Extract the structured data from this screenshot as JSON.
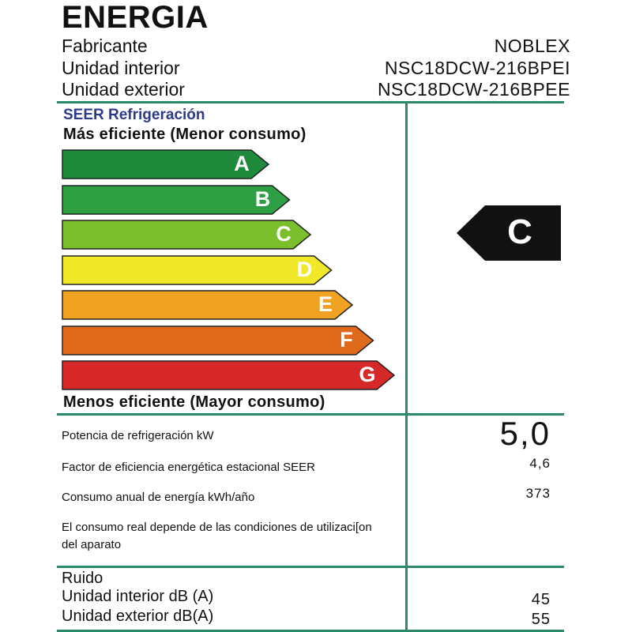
{
  "title": "ENERGIA",
  "header": [
    {
      "label": "Fabricante",
      "value": "NOBLEX"
    },
    {
      "label": "Unidad interior",
      "value": "NSC18DCW-216BPEI"
    },
    {
      "label": "Unidad exterior",
      "value": "NSC18DCW-216BPEE"
    }
  ],
  "section_title": "SEER Refrigeración",
  "scale_top": "Más eficiente (Menor consumo)",
  "scale_bottom": "Menos eficiente (Mayor consumo)",
  "bands": [
    {
      "letter": "A",
      "color": "#1f8a3c"
    },
    {
      "letter": "B",
      "color": "#2ea043"
    },
    {
      "letter": "C",
      "color": "#7cbf2c"
    },
    {
      "letter": "D",
      "color": "#f2e82a"
    },
    {
      "letter": "E",
      "color": "#f0a323"
    },
    {
      "letter": "F",
      "color": "#e06a1c"
    },
    {
      "letter": "G",
      "color": "#d62828"
    }
  ],
  "rating": "C",
  "specs": {
    "power_label": "Potencia de refrigeración kW",
    "power_value": "5,0",
    "seer_label": "Factor de eficiencia energética estacional SEER",
    "seer_value": "4,6",
    "consumption_label": "Consumo anual de energía kWh/año",
    "consumption_value": "373",
    "note": "El consumo real depende de las condiciones de utilizaci[on del aparato"
  },
  "noise": {
    "title": "Ruido",
    "indoor_label": "Unidad interior dB (A)",
    "indoor_value": "45",
    "outdoor_label": "Unidad  exterior dB(A)",
    "outdoor_value": "55"
  },
  "colors": {
    "rule": "#2a8a6e",
    "section_title": "#2b3a8a",
    "pointer": "#111111"
  }
}
